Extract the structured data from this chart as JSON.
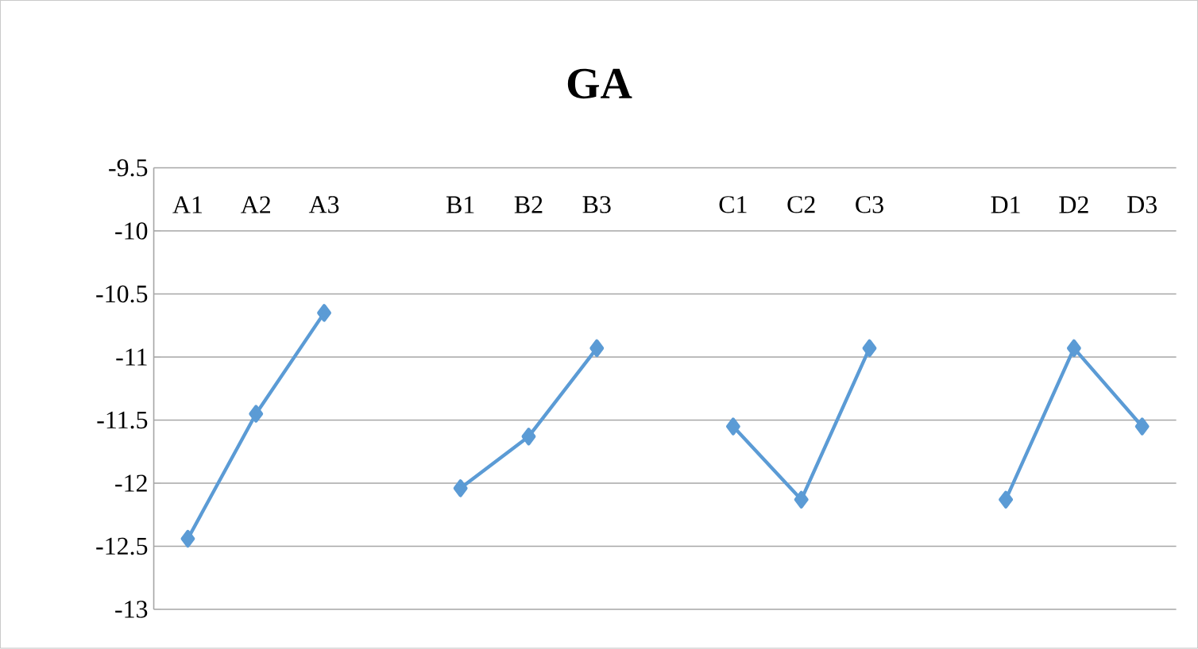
{
  "chart_data": {
    "type": "line",
    "title": "GA",
    "categories": [
      "A1",
      "A2",
      "A3",
      null,
      "B1",
      "B2",
      "B3",
      null,
      "C1",
      "C2",
      "C3",
      null,
      "D1",
      "D2",
      "D3"
    ],
    "values": [
      -12.44,
      -11.45,
      -10.65,
      null,
      -12.04,
      -11.63,
      -10.93,
      null,
      -11.55,
      -12.13,
      -10.93,
      null,
      -12.13,
      -10.93,
      -11.55
    ],
    "color": "#5b9bd5",
    "ylim": [
      -13,
      -9.5
    ],
    "yticks": [
      -13,
      -12.5,
      -12,
      -11.5,
      -11,
      -10.5,
      -10,
      -9.5
    ],
    "grid": "y",
    "marker": "diamond",
    "line_style": "solid"
  }
}
